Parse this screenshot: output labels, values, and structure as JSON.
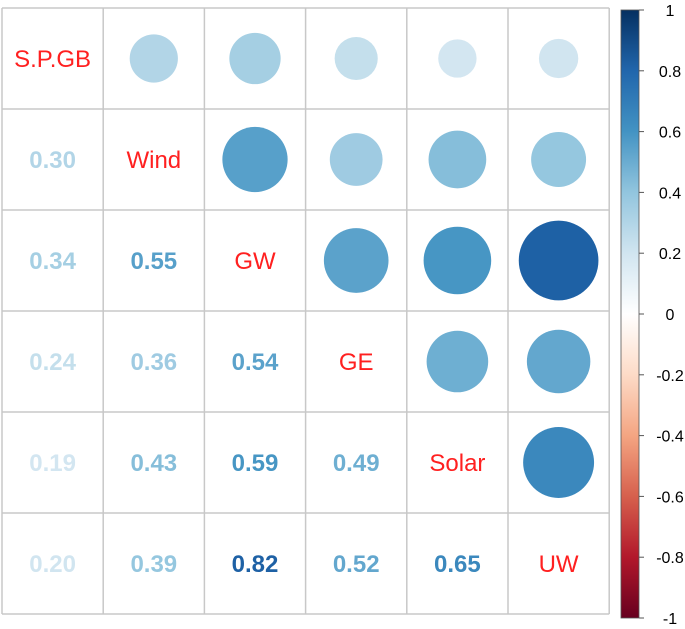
{
  "chart_data": {
    "type": "heatmap",
    "variables": [
      "S.P.GB",
      "Wind",
      "GW",
      "GE",
      "Solar",
      "UW"
    ],
    "matrix": [
      [
        1.0,
        0.3,
        0.34,
        0.24,
        0.19,
        0.2
      ],
      [
        0.3,
        1.0,
        0.55,
        0.36,
        0.43,
        0.39
      ],
      [
        0.34,
        0.55,
        1.0,
        0.54,
        0.59,
        0.82
      ],
      [
        0.24,
        0.36,
        0.54,
        1.0,
        0.49,
        0.52
      ],
      [
        0.19,
        0.43,
        0.59,
        0.49,
        1.0,
        0.65
      ],
      [
        0.2,
        0.39,
        0.82,
        0.52,
        0.65,
        1.0
      ]
    ],
    "number_labels": [
      [
        "",
        "",
        "",
        "",
        "",
        ""
      ],
      [
        "0.30",
        "",
        "",
        "",
        "",
        ""
      ],
      [
        "0.34",
        "0.55",
        "",
        "",
        "",
        ""
      ],
      [
        "0.24",
        "0.36",
        "0.54",
        "",
        "",
        ""
      ],
      [
        "0.19",
        "0.43",
        "0.59",
        "0.49",
        "",
        ""
      ],
      [
        "0.20",
        "0.39",
        "0.82",
        "0.52",
        "0.65",
        ""
      ]
    ],
    "upper_triangle": "circle",
    "lower_triangle": "number",
    "diagonal": "variable names",
    "color_scale": {
      "min": -1,
      "max": 1,
      "ticks": [
        "1",
        "0.8",
        "0.6",
        "0.4",
        "0.2",
        "0",
        "-0.2",
        "-0.4",
        "-0.6",
        "-0.8",
        "-1"
      ],
      "palette": [
        "#67001F",
        "#B2182B",
        "#D6604D",
        "#F4A582",
        "#FDDBC7",
        "#FFFFFF",
        "#D1E5F0",
        "#92C5DE",
        "#4393C3",
        "#2166AC",
        "#053061"
      ]
    },
    "label_color": "#FF2020",
    "grid_color": "#C8C8C8",
    "legend_position": "right"
  }
}
